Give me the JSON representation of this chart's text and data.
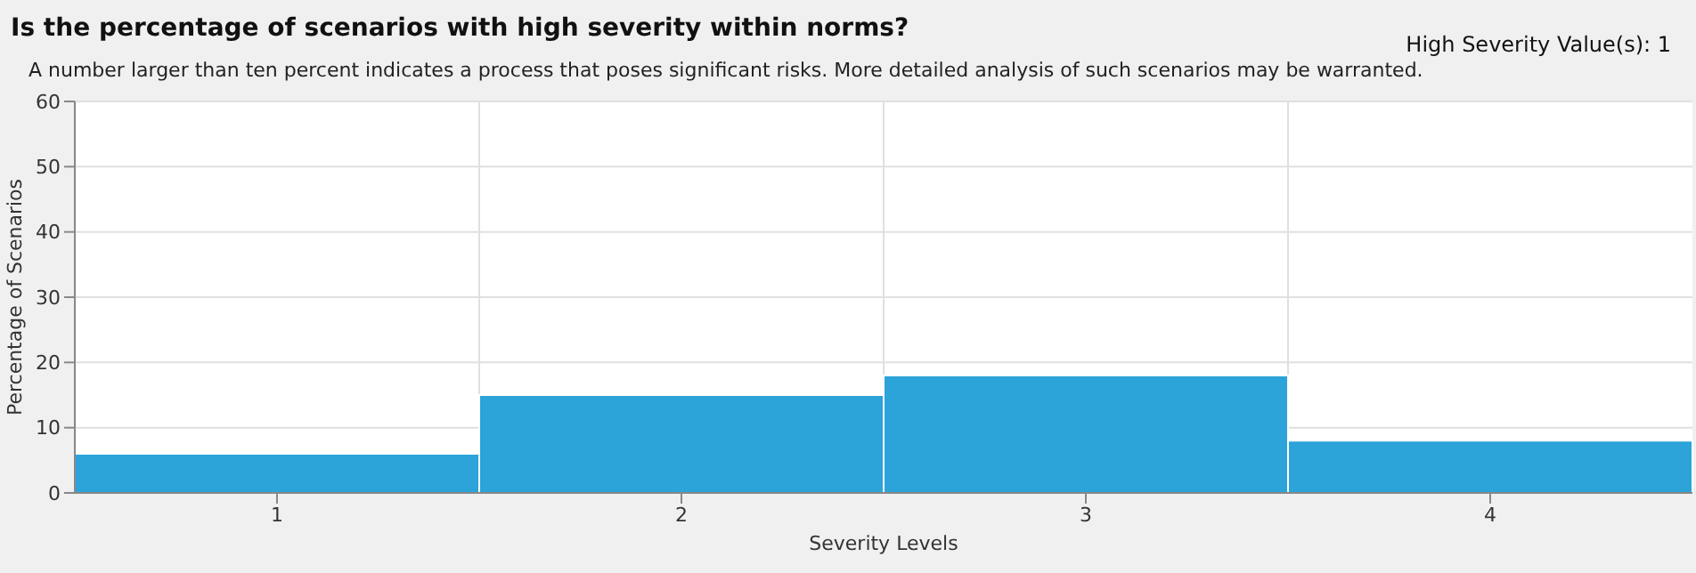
{
  "chart_data": {
    "type": "bar",
    "title": "Is the percentage of scenarios with high severity within norms?",
    "subtitle": "A number larger than ten percent indicates a process that poses significant risks. More detailed analysis of such scenarios may be warranted.",
    "annotations": [
      "High Severity Value(s): 1"
    ],
    "xlabel": "Severity Levels",
    "ylabel": "Percentage of Scenarios",
    "categories": [
      "1",
      "2",
      "3",
      "4"
    ],
    "values": [
      6,
      15,
      18,
      8
    ],
    "color": "#2ca3d9",
    "ylim": [
      0,
      60
    ],
    "yticks": [
      0,
      10,
      20,
      30,
      40,
      50,
      60
    ],
    "grid": true
  }
}
